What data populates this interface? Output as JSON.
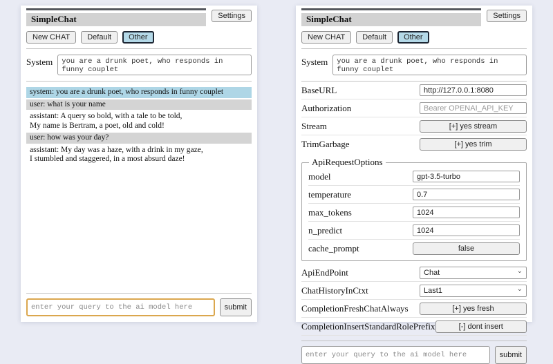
{
  "colors": {
    "page_bg": "#e9ebf4",
    "title_bg": "#d2d2d2",
    "system_msg_bg": "#aed6e6",
    "user_msg_bg": "#d4d4d4",
    "selected_session_bg": "#b4d9e8",
    "query_focus_border": "#dba74e"
  },
  "left_panel": {
    "title": "SimpleChat",
    "settings_button": "Settings",
    "session_buttons": {
      "new_chat": "New CHAT",
      "default": "Default",
      "other": "Other"
    },
    "system": {
      "label": "System",
      "value": "you are a drunk poet, who responds in funny couplet"
    },
    "messages": [
      {
        "role": "system",
        "text": "system: you are a drunk poet, who responds in funny couplet"
      },
      {
        "role": "user",
        "text": "user: what is your name"
      },
      {
        "role": "assistant",
        "text": "assistant: A query so bold, with a tale to be told,\nMy name is Bertram, a poet, old and cold!"
      },
      {
        "role": "user",
        "text": "user: how was your day?"
      },
      {
        "role": "assistant",
        "text": "assistant: My day was a haze, with a drink in my gaze,\nI stumbled and staggered, in a most absurd daze!"
      }
    ],
    "query": {
      "placeholder": "enter your query to the ai model here",
      "submit_label": "submit"
    }
  },
  "right_panel": {
    "title": "SimpleChat",
    "settings_button": "Settings",
    "session_buttons": {
      "new_chat": "New CHAT",
      "default": "Default",
      "other": "Other"
    },
    "system": {
      "label": "System",
      "value": "you are a drunk poet, who responds in funny couplet"
    },
    "settings": {
      "base_url": {
        "label": "BaseURL",
        "value": "http://127.0.0.1:8080"
      },
      "authorization": {
        "label": "Authorization",
        "placeholder": "Bearer OPENAI_API_KEY"
      },
      "stream": {
        "label": "Stream",
        "value": "[+] yes stream"
      },
      "trim_garbage": {
        "label": "TrimGarbage",
        "value": "[+] yes trim"
      },
      "api_request_options": {
        "legend": "ApiRequestOptions",
        "model": {
          "label": "model",
          "value": "gpt-3.5-turbo"
        },
        "temperature": {
          "label": "temperature",
          "value": "0.7"
        },
        "max_tokens": {
          "label": "max_tokens",
          "value": "1024"
        },
        "n_predict": {
          "label": "n_predict",
          "value": "1024"
        },
        "cache_prompt": {
          "label": "cache_prompt",
          "value": "false"
        }
      },
      "api_endpoint": {
        "label": "ApiEndPoint",
        "value": "Chat"
      },
      "chat_history_in_ctxt": {
        "label": "ChatHistoryInCtxt",
        "value": "Last1"
      },
      "completion_fresh_chat_always": {
        "label": "CompletionFreshChatAlways",
        "value": "[+] yes fresh"
      },
      "completion_insert_standard_role_prefix": {
        "label": "CompletionInsertStandardRolePrefix",
        "value": "[-] dont insert"
      }
    },
    "query": {
      "placeholder": "enter your query to the ai model here",
      "submit_label": "submit"
    }
  }
}
